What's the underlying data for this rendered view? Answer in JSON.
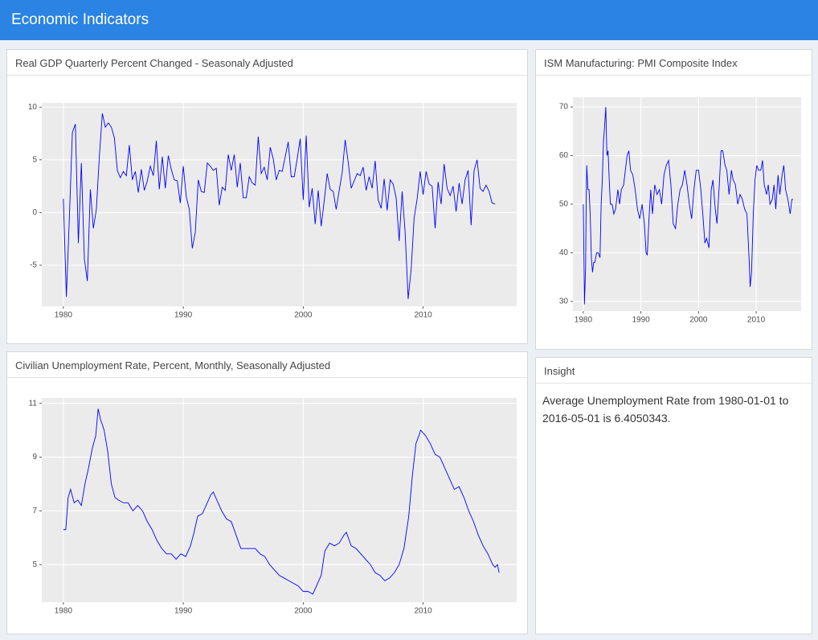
{
  "header": {
    "title": "Economic Indicators"
  },
  "chart_data": [
    {
      "type": "line",
      "title": "Real GDP Quarterly Percent Changed - Seasonaly Adjusted",
      "color": "#0000ff",
      "xlim": [
        1978.2,
        2017.8
      ],
      "ylim": [
        -8.9,
        10.4
      ],
      "xticks": [
        1980,
        1990,
        2000,
        2010
      ],
      "yticks": [
        -5,
        0,
        5,
        10
      ],
      "grid": true,
      "x": [
        1980,
        1980.25,
        1980.5,
        1980.75,
        1981,
        1981.25,
        1981.5,
        1981.75,
        1982,
        1982.25,
        1982.5,
        1982.75,
        1983,
        1983.25,
        1983.5,
        1983.75,
        1984,
        1984.25,
        1984.5,
        1984.75,
        1985,
        1985.25,
        1985.5,
        1985.75,
        1986,
        1986.25,
        1986.5,
        1986.75,
        1987,
        1987.25,
        1987.5,
        1987.75,
        1988,
        1988.25,
        1988.5,
        1988.75,
        1989,
        1989.25,
        1989.5,
        1989.75,
        1990,
        1990.25,
        1990.5,
        1990.75,
        1991,
        1991.25,
        1991.5,
        1991.75,
        1992,
        1992.25,
        1992.5,
        1992.75,
        1993,
        1993.25,
        1993.5,
        1993.75,
        1994,
        1994.25,
        1994.5,
        1994.75,
        1995,
        1995.25,
        1995.5,
        1995.75,
        1996,
        1996.25,
        1996.5,
        1996.75,
        1997,
        1997.25,
        1997.5,
        1997.75,
        1998,
        1998.25,
        1998.5,
        1998.75,
        1999,
        1999.25,
        1999.5,
        1999.75,
        2000,
        2000.25,
        2000.5,
        2000.75,
        2001,
        2001.25,
        2001.5,
        2001.75,
        2002,
        2002.25,
        2002.5,
        2002.75,
        2003,
        2003.25,
        2003.5,
        2003.75,
        2004,
        2004.25,
        2004.5,
        2004.75,
        2005,
        2005.25,
        2005.5,
        2005.75,
        2006,
        2006.25,
        2006.5,
        2006.75,
        2007,
        2007.25,
        2007.5,
        2007.75,
        2008,
        2008.25,
        2008.5,
        2008.75,
        2009,
        2009.25,
        2009.5,
        2009.75,
        2010,
        2010.25,
        2010.5,
        2010.75,
        2011,
        2011.25,
        2011.5,
        2011.75,
        2012,
        2012.25,
        2012.5,
        2012.75,
        2013,
        2013.25,
        2013.5,
        2013.75,
        2014,
        2014.25,
        2014.5,
        2014.75,
        2015,
        2015.25,
        2015.5,
        2015.75,
        2016
      ],
      "values": [
        1.3,
        -8.0,
        -0.5,
        7.6,
        8.4,
        -2.9,
        4.7,
        -4.4,
        -6.5,
        2.2,
        -1.5,
        0.3,
        5.3,
        9.4,
        8.1,
        8.5,
        8.1,
        7.1,
        4.0,
        3.3,
        3.9,
        3.5,
        6.4,
        3.1,
        3.9,
        1.9,
        4.1,
        2.1,
        3.0,
        4.4,
        3.5,
        6.8,
        2.2,
        5.3,
        2.3,
        5.4,
        4.1,
        3.1,
        3.0,
        0.9,
        4.4,
        1.5,
        0.3,
        -3.4,
        -1.9,
        3.1,
        2.0,
        1.9,
        4.7,
        4.4,
        4.0,
        4.2,
        0.7,
        2.4,
        2.1,
        5.5,
        4.0,
        5.5,
        2.4,
        4.7,
        1.4,
        1.4,
        3.4,
        2.8,
        2.6,
        7.2,
        3.7,
        4.3,
        3.1,
        6.2,
        5.1,
        3.1,
        4.0,
        3.9,
        5.3,
        6.7,
        3.4,
        3.4,
        5.1,
        7.0,
        1.2,
        7.3,
        0.5,
        2.3,
        -1.1,
        2.1,
        -1.3,
        1.1,
        3.7,
        2.2,
        2.0,
        0.3,
        2.1,
        3.8,
        6.9,
        4.8,
        2.3,
        3.0,
        3.7,
        3.5,
        4.3,
        2.1,
        3.4,
        2.3,
        4.9,
        1.2,
        0.4,
        3.2,
        0.2,
        3.1,
        2.7,
        1.4,
        -2.7,
        2.0,
        -1.9,
        -8.2,
        -5.4,
        -0.5,
        1.3,
        3.9,
        1.7,
        3.9,
        2.7,
        2.5,
        -1.5,
        2.9,
        0.8,
        4.6,
        2.3,
        1.6,
        2.5,
        0.1,
        2.8,
        0.8,
        3.1,
        4.0,
        -1.2,
        4.0,
        5.0,
        2.3,
        2.0,
        2.6,
        2.0,
        0.9,
        0.8
      ]
    },
    {
      "type": "line",
      "title": "ISM Manufacturing: PMI Composite Index",
      "color": "#0000ff",
      "xlim": [
        1978.2,
        2017.8
      ],
      "ylim": [
        28,
        72
      ],
      "xticks": [
        1980,
        1990,
        2000,
        2010
      ],
      "yticks": [
        30,
        40,
        50,
        60,
        70
      ],
      "grid": true,
      "x": [
        1980,
        1980.2,
        1980.4,
        1980.5,
        1980.6,
        1980.8,
        1981.0,
        1981.2,
        1981.4,
        1981.6,
        1981.8,
        1982.0,
        1982.3,
        1982.6,
        1982.9,
        1983.1,
        1983.3,
        1983.5,
        1983.7,
        1983.9,
        1984.1,
        1984.3,
        1984.5,
        1984.7,
        1985,
        1985.3,
        1985.6,
        1986,
        1986.3,
        1986.6,
        1987,
        1987.3,
        1987.6,
        1987.9,
        1988.2,
        1988.6,
        1989,
        1989.4,
        1989.8,
        1990.2,
        1990.6,
        1990.9,
        1991.1,
        1991.4,
        1991.7,
        1992.0,
        1992.4,
        1992.8,
        1993.2,
        1993.6,
        1994,
        1994.4,
        1994.8,
        1995.2,
        1995.6,
        1996.0,
        1996.4,
        1996.8,
        1997.2,
        1997.6,
        1998.0,
        1998.4,
        1998.8,
        1999.2,
        1999.6,
        2000.0,
        2000.4,
        2000.8,
        2001.1,
        2001.4,
        2001.8,
        2002.2,
        2002.5,
        2002.9,
        2003.2,
        2003.6,
        2003.9,
        2004.2,
        2004.6,
        2004.9,
        2005.3,
        2005.7,
        2006.0,
        2006.4,
        2006.8,
        2007.2,
        2007.6,
        2008.0,
        2008.4,
        2008.8,
        2008.95,
        2009.2,
        2009.5,
        2009.8,
        2010.1,
        2010.4,
        2010.8,
        2011.1,
        2011.4,
        2011.8,
        2012.1,
        2012.4,
        2012.8,
        2013.1,
        2013.4,
        2013.8,
        2014.1,
        2014.5,
        2014.8,
        2015.1,
        2015.5,
        2015.9,
        2016.2,
        2016.4
      ],
      "values": [
        50.0,
        29.4,
        37,
        50,
        58,
        53,
        53,
        48,
        39,
        36,
        38,
        38,
        40,
        40,
        39,
        50,
        55,
        63,
        66,
        70,
        60,
        61,
        55,
        50,
        50,
        48,
        49,
        53,
        50,
        53,
        54,
        57,
        60,
        61,
        57,
        56,
        53,
        49,
        47,
        50,
        46,
        40,
        39.5,
        47,
        53,
        48,
        54,
        52,
        53,
        50,
        56,
        58,
        59,
        54,
        46,
        45,
        50,
        53,
        54,
        57,
        54,
        50,
        47,
        53,
        57,
        57,
        53,
        47,
        42,
        43,
        41,
        53,
        55,
        49,
        46,
        54,
        61,
        61,
        58,
        57,
        52,
        57,
        55,
        54,
        50,
        52,
        51,
        49,
        48,
        38,
        33,
        36,
        48,
        55,
        58,
        57,
        57,
        59,
        54,
        52,
        54,
        50,
        51,
        54,
        49,
        56,
        52,
        56,
        58,
        53,
        51,
        48,
        51,
        51
      ]
    },
    {
      "type": "line",
      "title": "Civilian Unemployment Rate, Percent, Monthly, Seasonally Adjusted",
      "color": "#0000ff",
      "xlim": [
        1978.2,
        2017.8
      ],
      "ylim": [
        3.6,
        11.2
      ],
      "xticks": [
        1980,
        1990,
        2000,
        2010
      ],
      "yticks": [
        5,
        7,
        9,
        11
      ],
      "grid": true,
      "x": [
        1980,
        1980.2,
        1980.4,
        1980.6,
        1980.9,
        1981.2,
        1981.5,
        1981.8,
        1982.1,
        1982.4,
        1982.7,
        1982.9,
        1983.1,
        1983.4,
        1983.7,
        1984.0,
        1984.3,
        1984.6,
        1985.0,
        1985.4,
        1985.8,
        1986.2,
        1986.6,
        1987.0,
        1987.4,
        1987.8,
        1988.2,
        1988.6,
        1989.0,
        1989.4,
        1989.8,
        1990.2,
        1990.6,
        1990.9,
        1991.2,
        1991.6,
        1991.9,
        1992.3,
        1992.5,
        1992.8,
        1993.2,
        1993.6,
        1994.0,
        1994.4,
        1994.8,
        1995.2,
        1995.6,
        1996.0,
        1996.4,
        1996.8,
        1997.2,
        1997.6,
        1998.0,
        1998.4,
        1998.8,
        1999.2,
        1999.6,
        2000.0,
        2000.4,
        2000.8,
        2001.2,
        2001.5,
        2001.8,
        2002.2,
        2002.6,
        2003.0,
        2003.4,
        2003.6,
        2004.0,
        2004.4,
        2004.8,
        2005.2,
        2005.6,
        2006.0,
        2006.4,
        2006.8,
        2007.2,
        2007.6,
        2008.0,
        2008.4,
        2008.8,
        2009.1,
        2009.4,
        2009.8,
        2010.2,
        2010.6,
        2011.0,
        2011.4,
        2011.8,
        2012.2,
        2012.6,
        2013.0,
        2013.4,
        2013.8,
        2014.2,
        2014.6,
        2015.0,
        2015.4,
        2015.8,
        2016.0,
        2016.2,
        2016.33
      ],
      "values": [
        6.3,
        6.3,
        7.5,
        7.8,
        7.3,
        7.4,
        7.2,
        8.0,
        8.6,
        9.3,
        9.8,
        10.8,
        10.4,
        10.0,
        9.2,
        8.0,
        7.5,
        7.4,
        7.3,
        7.3,
        7.0,
        7.2,
        7.0,
        6.6,
        6.3,
        5.9,
        5.6,
        5.4,
        5.4,
        5.2,
        5.4,
        5.3,
        5.7,
        6.2,
        6.8,
        6.9,
        7.2,
        7.6,
        7.7,
        7.4,
        7.0,
        6.7,
        6.6,
        6.1,
        5.6,
        5.6,
        5.6,
        5.6,
        5.4,
        5.3,
        5.0,
        4.8,
        4.6,
        4.5,
        4.4,
        4.3,
        4.2,
        4.0,
        4.0,
        3.9,
        4.3,
        4.6,
        5.5,
        5.8,
        5.7,
        5.8,
        6.1,
        6.2,
        5.7,
        5.6,
        5.4,
        5.2,
        5.0,
        4.7,
        4.6,
        4.4,
        4.5,
        4.7,
        5.0,
        5.6,
        6.8,
        8.3,
        9.5,
        10.0,
        9.8,
        9.5,
        9.1,
        9.0,
        8.6,
        8.2,
        7.8,
        7.9,
        7.5,
        7.0,
        6.6,
        6.1,
        5.7,
        5.4,
        5.0,
        4.9,
        5.0,
        4.7
      ]
    }
  ],
  "insight": {
    "title": "Insight",
    "text": "Average Unemployment Rate from 1980-01-01 to 2016-05-01 is 6.4050343."
  }
}
